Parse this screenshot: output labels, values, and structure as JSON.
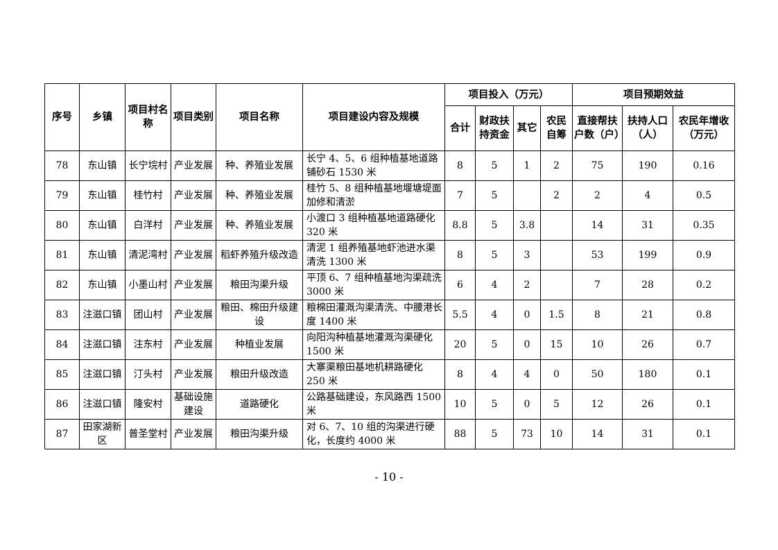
{
  "headers": {
    "seq": "序号",
    "town": "乡镇",
    "village": "项目村名称",
    "category": "项目类别",
    "name": "项目名称",
    "content": "项目建设内容及规模",
    "investment": "项目投入（万元）",
    "total": "合计",
    "fiscal": "财政扶持资金",
    "other": "其它",
    "self": "农民自筹",
    "benefit": "项目预期效益",
    "households": "直接帮扶户数（户）",
    "population": "扶持人口（人）",
    "income": "农民年增收（万元）"
  },
  "rows": [
    [
      "78",
      "东山镇",
      "长宁垸村",
      "产业发展",
      "种、养殖业发展",
      "长宁 4、5、6 组种植基地道路铺砂石 1530 米",
      "8",
      "5",
      "1",
      "2",
      "75",
      "190",
      "0.16"
    ],
    [
      "79",
      "东山镇",
      "桂竹村",
      "产业发展",
      "种、养殖业发展",
      "桂竹 5、8 组种植基地堰塘堤面加修和清淤",
      "7",
      "5",
      "",
      "2",
      "2",
      "4",
      "0.5"
    ],
    [
      "80",
      "东山镇",
      "白洋村",
      "产业发展",
      "种、养殖业发展",
      "小渡口 3 组种植基地道路硬化 320 米",
      "8.8",
      "5",
      "3.8",
      "",
      "14",
      "31",
      "0.35"
    ],
    [
      "81",
      "东山镇",
      "清泥湾村",
      "产业发展",
      "稻虾养殖升级改造",
      "清泥 1 组养殖基地虾池进水渠清洗 1300 米",
      "8",
      "5",
      "3",
      "",
      "53",
      "199",
      "0.9"
    ],
    [
      "82",
      "东山镇",
      "小墨山村",
      "产业发展",
      "粮田沟渠升级",
      "平顶 6、7 组种植基地沟渠疏洗 3000 米",
      "6",
      "4",
      "2",
      "",
      "7",
      "28",
      "0.2"
    ],
    [
      "83",
      "注滋口镇",
      "团山村",
      "产业发展",
      "粮田、棉田升级建设",
      "粮棉田灌溉沟渠清洗、中腰港长度 1400 米",
      "5.5",
      "4",
      "0",
      "1.5",
      "8",
      "21",
      "0.8"
    ],
    [
      "84",
      "注滋口镇",
      "注东村",
      "产业发展",
      "种植业发展",
      "向阳沟种植基地灌溉沟渠硬化 1500 米",
      "20",
      "5",
      "0",
      "15",
      "10",
      "26",
      "0.7"
    ],
    [
      "85",
      "注滋口镇",
      "汀头村",
      "产业发展",
      "粮田升级改造",
      "大寨渠粮田基地机耕路硬化 250 米",
      "8",
      "4",
      "4",
      "0",
      "50",
      "180",
      "0.1"
    ],
    [
      "86",
      "注滋口镇",
      "隆安村",
      "基础设施建设",
      "道路硬化",
      "公路基础建设，东风路西 1500 米",
      "10",
      "5",
      "0",
      "5",
      "12",
      "26",
      "0.1"
    ],
    [
      "87",
      "田家湖新区",
      "普圣堂村",
      "产业发展",
      "粮田沟渠升级",
      "对 6、7、10 组的沟渠进行硬化，长度约 4000 米",
      "88",
      "5",
      "73",
      "10",
      "14",
      "31",
      "0.1"
    ]
  ],
  "page_number": "- 10 -"
}
